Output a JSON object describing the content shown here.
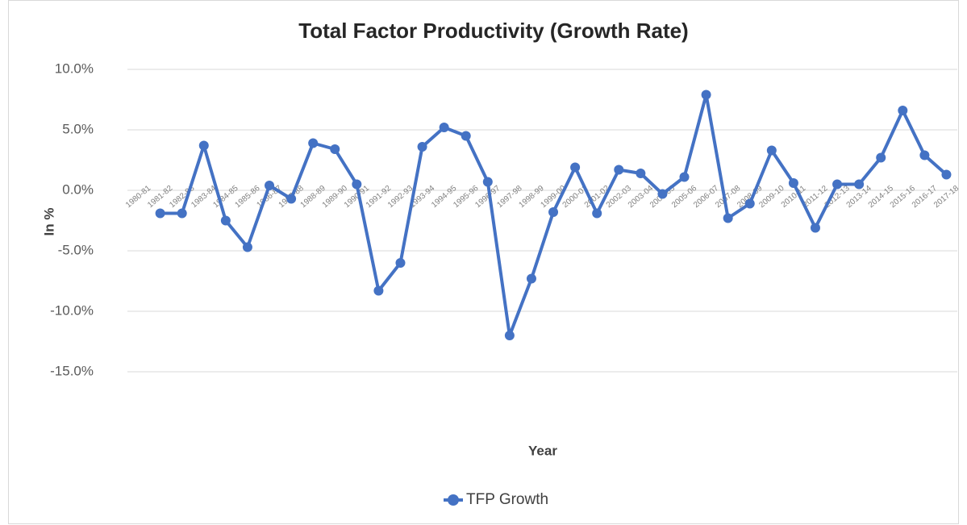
{
  "chart_data": {
    "type": "line",
    "title": "Total Factor Productivity (Growth Rate)",
    "x_label": "Year",
    "y_label": "In %",
    "categories": [
      "1980-81",
      "1981-82",
      "1982-83",
      "1983-84",
      "1984-85",
      "1985-86",
      "1986-87",
      "1987-88",
      "1988-89",
      "1989-90",
      "1990-91",
      "1991-92",
      "1992-93",
      "1993-94",
      "1994-95",
      "1995-96",
      "1996-97",
      "1997-98",
      "1998-99",
      "1999-00",
      "2000-01",
      "2001-02",
      "2002-03",
      "2003-04",
      "2004-05",
      "2005-06",
      "2006-07",
      "2007-08",
      "2008-09",
      "2009-10",
      "2010-11",
      "2011-12",
      "2012-13",
      "2013-14",
      "2014-15",
      "2015-16",
      "2016-17",
      "2017-18"
    ],
    "series": [
      {
        "name": "TFP Growth",
        "color": "#4472c4",
        "values": [
          null,
          -1.9,
          -1.9,
          3.7,
          -2.5,
          -4.7,
          0.4,
          -0.7,
          3.9,
          3.4,
          0.5,
          -8.3,
          -6.0,
          3.6,
          5.2,
          4.5,
          0.7,
          -12.0,
          -7.3,
          -1.8,
          1.9,
          -1.9,
          1.7,
          1.4,
          -0.3,
          1.1,
          7.9,
          -2.3,
          -1.1,
          3.3,
          0.6,
          -3.1,
          0.5,
          0.5,
          2.7,
          6.6,
          2.9,
          1.3
        ]
      }
    ],
    "ylim": [
      -15,
      10
    ],
    "yticks": [
      {
        "value": -15,
        "label": "-15.0%"
      },
      {
        "value": -10,
        "label": "-10.0%"
      },
      {
        "value": -5,
        "label": "-5.0%"
      },
      {
        "value": 0,
        "label": "0.0%"
      },
      {
        "value": 5,
        "label": "5.0%"
      },
      {
        "value": 10,
        "label": "10.0%"
      }
    ],
    "grid": true,
    "legend": "bottom"
  }
}
